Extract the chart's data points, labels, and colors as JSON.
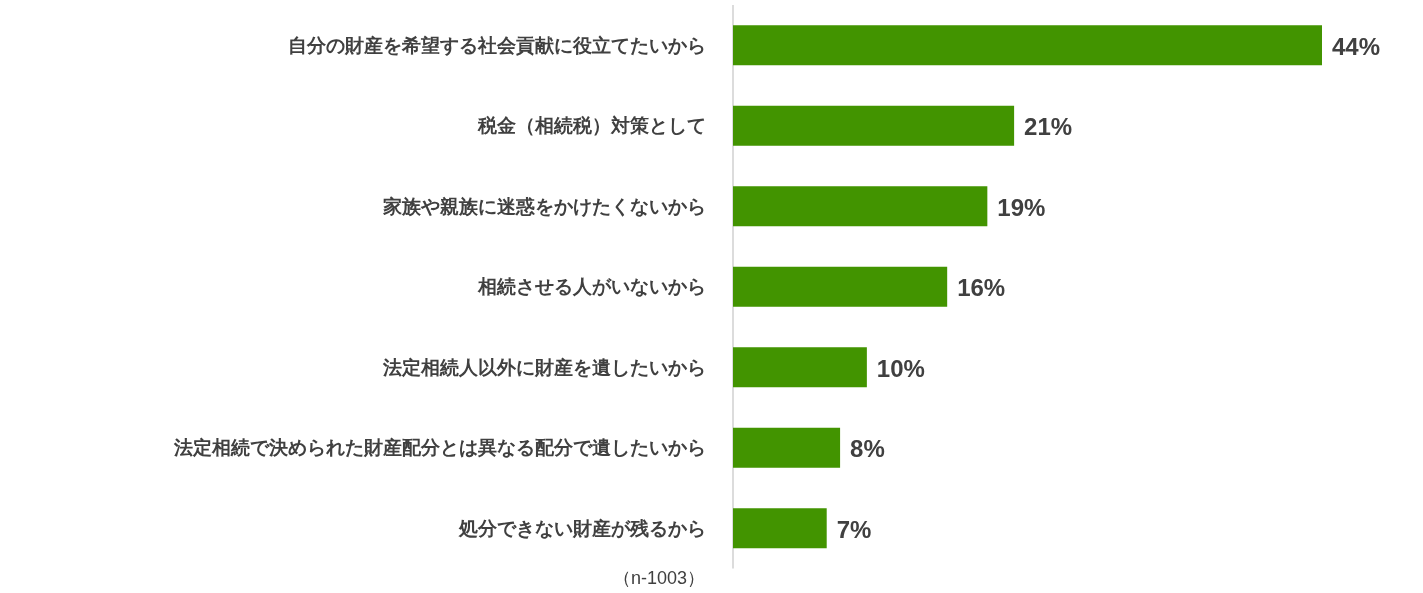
{
  "chart_data": {
    "type": "bar",
    "orientation": "horizontal",
    "color": "#429400",
    "categories": [
      "自分の財産を希望する社会貢献に役立てたいから",
      "税金（相続税）対策として",
      "家族や親族に迷惑をかけたくないから",
      "相続させる人がいないから",
      "法定相続人以外に財産を遺したいから",
      "法定相続で決められた財産配分とは異なる配分で遺したいから",
      "処分できない財産が残るから"
    ],
    "values": [
      44,
      21,
      19,
      16,
      10,
      8,
      7
    ],
    "value_labels": [
      "44%",
      "21%",
      "19%",
      "16%",
      "10%",
      "8%",
      "7%"
    ],
    "annotations": [
      "（n-1003）"
    ]
  }
}
